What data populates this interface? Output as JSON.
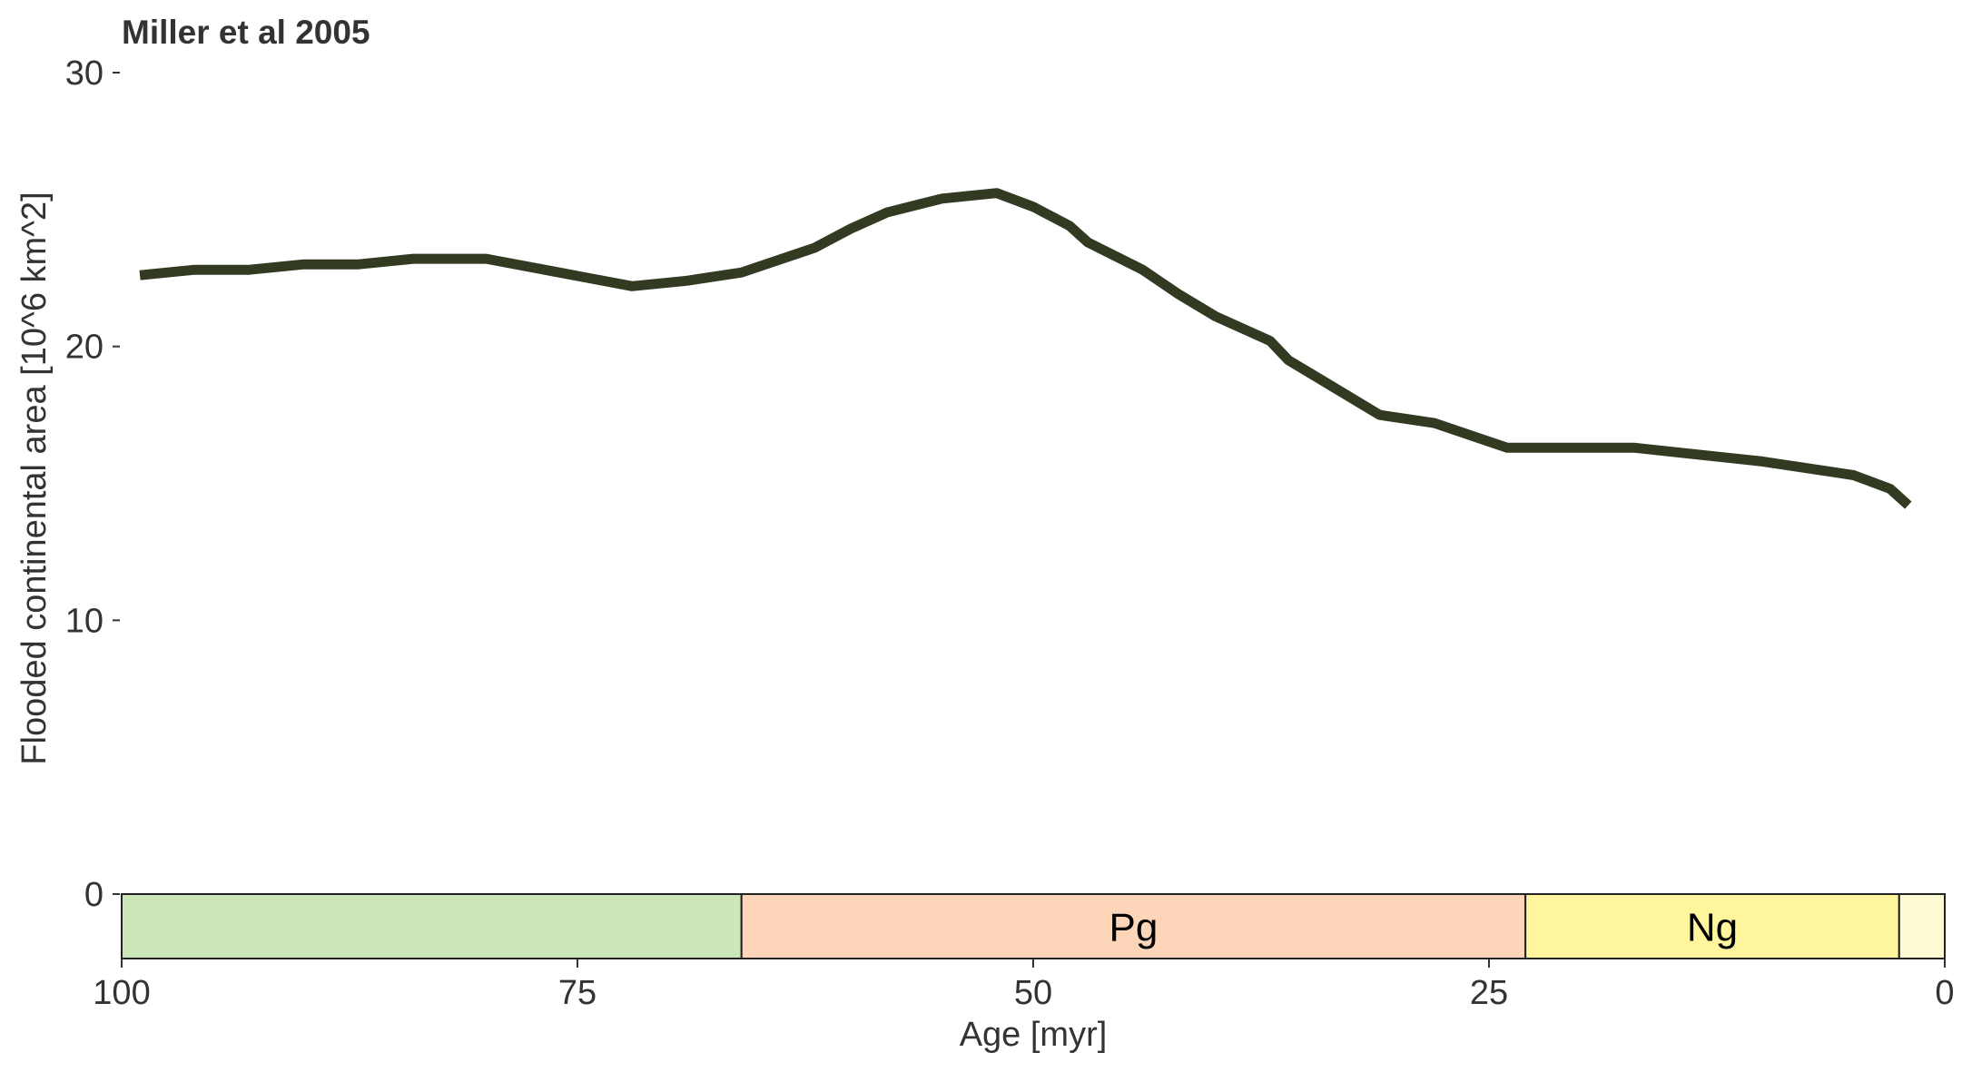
{
  "chart_data": {
    "type": "line",
    "title": "Miller et al 2005",
    "xlabel": "Age [myr]",
    "ylabel": "Flooded continental area [10^6 km^2]",
    "xlim": [
      100,
      0
    ],
    "ylim": [
      0,
      30
    ],
    "x_ticks": [
      100,
      75,
      50,
      25,
      0
    ],
    "y_ticks": [
      0,
      10,
      20,
      30
    ],
    "grid": false,
    "series": [
      {
        "color": "#323a22",
        "x": [
          99,
          96,
          93,
          90,
          87,
          84,
          80,
          76,
          72,
          69,
          66,
          62,
          60,
          58,
          55,
          52,
          50,
          48,
          47,
          44,
          42,
          40,
          37,
          36,
          34,
          32,
          31,
          28,
          24,
          17,
          10,
          5,
          3,
          2
        ],
        "y": [
          22.6,
          22.8,
          22.8,
          23.0,
          23.0,
          23.2,
          23.2,
          22.7,
          22.2,
          22.4,
          22.7,
          23.6,
          24.3,
          24.9,
          25.4,
          25.6,
          25.1,
          24.4,
          23.8,
          22.8,
          21.9,
          21.1,
          20.2,
          19.5,
          18.7,
          17.9,
          17.5,
          17.2,
          16.3,
          16.3,
          15.8,
          15.3,
          14.8,
          14.2
        ]
      }
    ],
    "timescale": [
      {
        "label": "",
        "from": 100,
        "to": 66,
        "color": "#cce7b7"
      },
      {
        "label": "Pg",
        "from": 66,
        "to": 23,
        "color": "#fdd5b8"
      },
      {
        "label": "Ng",
        "from": 23,
        "to": 2.5,
        "color": "#fef59d"
      },
      {
        "label": "",
        "from": 2.5,
        "to": 0,
        "color": "#fefad3"
      }
    ]
  }
}
